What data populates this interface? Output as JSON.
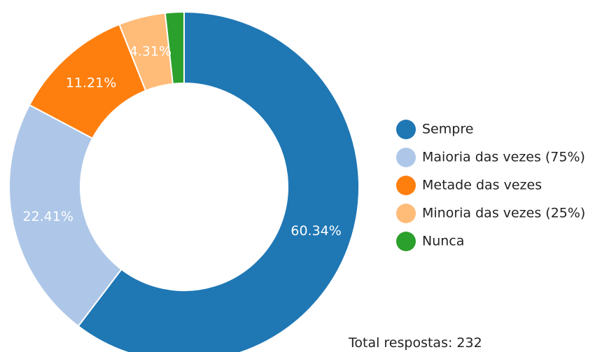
{
  "chart_data": {
    "type": "donut",
    "categories": [
      "Sempre",
      "Maioria das vezes (75%)",
      "Metade das vezes",
      "Minoria das vezes (25%)",
      "Nunca"
    ],
    "values": [
      60.34,
      22.41,
      11.21,
      4.31,
      1.73
    ],
    "value_labels": [
      "60.34%",
      "22.41%",
      "11.21%",
      "4.31%",
      null
    ],
    "colors": [
      "#1f77b4",
      "#aec7e8",
      "#ff7f0e",
      "#ffbb78",
      "#2ca02c"
    ],
    "total": {
      "label": "Total respostas:",
      "value": 232
    }
  }
}
